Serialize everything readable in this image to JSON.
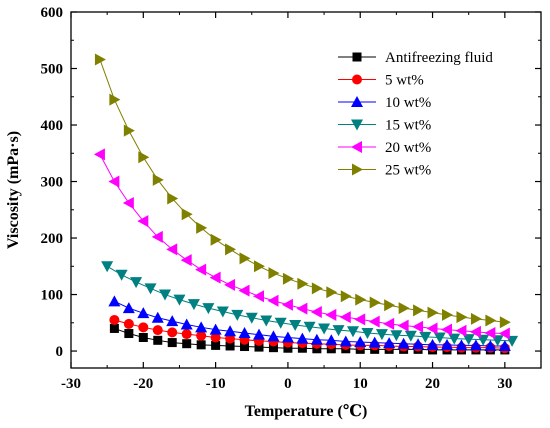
{
  "chart_data": {
    "type": "line",
    "xlabel": "Temperature (℃)",
    "ylabel": "Viscosity (mPa·s)",
    "xlim": [
      -30,
      35
    ],
    "ylim": [
      -30,
      600
    ],
    "xticks": [
      -30,
      -20,
      -10,
      0,
      10,
      20,
      30
    ],
    "yticks": [
      0,
      100,
      200,
      300,
      400,
      500,
      600
    ],
    "legend_position": "top-right",
    "grid": false,
    "x": [
      -24,
      -22,
      -20,
      -18,
      -16,
      -14,
      -12,
      -10,
      -8,
      -6,
      -4,
      -2,
      0,
      2,
      4,
      6,
      8,
      10,
      12,
      14,
      16,
      18,
      20,
      22,
      24,
      26,
      28,
      30
    ],
    "series": [
      {
        "name": "Antifreezing fluid",
        "color": "#000000",
        "marker": "square",
        "x": [
          -24,
          -22,
          -20,
          -18,
          -16,
          -14,
          -12,
          -10,
          -8,
          -6,
          -4,
          -2,
          0,
          2,
          4,
          6,
          8,
          10,
          12,
          14,
          16,
          18,
          20,
          22,
          24,
          26,
          28,
          30
        ],
        "values": [
          40,
          31,
          24,
          19,
          15,
          13,
          11,
          10,
          9,
          8,
          7,
          6,
          5,
          5,
          4,
          4,
          4,
          3,
          3,
          3,
          3,
          3,
          2,
          2,
          2,
          2,
          2,
          2
        ]
      },
      {
        "name": "5 wt%",
        "color": "#ff0000",
        "marker": "circle",
        "x": [
          -24,
          -22,
          -20,
          -18,
          -16,
          -14,
          -12,
          -10,
          -8,
          -6,
          -4,
          -2,
          0,
          2,
          4,
          6,
          8,
          10,
          12,
          14,
          16,
          18,
          20,
          22,
          24,
          26,
          28,
          30
        ],
        "values": [
          55,
          48,
          42,
          37,
          33,
          30,
          27,
          24,
          22,
          20,
          18,
          17,
          15,
          14,
          13,
          12,
          11,
          10,
          10,
          9,
          8,
          8,
          7,
          7,
          6,
          6,
          6,
          5
        ]
      },
      {
        "name": "10 wt%",
        "color": "#0000ff",
        "marker": "triangle-up",
        "x": [
          -24,
          -22,
          -20,
          -18,
          -16,
          -14,
          -12,
          -10,
          -8,
          -6,
          -4,
          -2,
          0,
          2,
          4,
          6,
          8,
          10,
          12,
          14,
          16,
          18,
          20,
          22,
          24,
          26,
          28,
          30
        ],
        "values": [
          88,
          76,
          67,
          59,
          53,
          47,
          42,
          38,
          35,
          32,
          29,
          26,
          24,
          22,
          20,
          19,
          17,
          16,
          15,
          14,
          13,
          12,
          11,
          11,
          10,
          10,
          9,
          9
        ]
      },
      {
        "name": "15 wt%",
        "color": "#008080",
        "marker": "triangle-down",
        "x": [
          -25,
          -23,
          -21,
          -19,
          -17,
          -15,
          -13,
          -11,
          -9,
          -7,
          -5,
          -3,
          -1,
          1,
          3,
          5,
          7,
          9,
          11,
          13,
          15,
          17,
          19,
          21,
          23,
          25,
          27,
          29,
          31
        ],
        "values": [
          150,
          135,
          122,
          111,
          100,
          91,
          83,
          76,
          70,
          64,
          59,
          54,
          50,
          46,
          43,
          40,
          37,
          35,
          32,
          30,
          28,
          27,
          25,
          24,
          22,
          21,
          20,
          19,
          18
        ]
      },
      {
        "name": "20 wt%",
        "color": "#ff00ff",
        "marker": "triangle-left",
        "x": [
          -26,
          -24,
          -22,
          -20,
          -18,
          -16,
          -14,
          -12,
          -10,
          -8,
          -6,
          -4,
          -2,
          0,
          2,
          4,
          6,
          8,
          10,
          12,
          14,
          16,
          18,
          20,
          22,
          24,
          26,
          28,
          30
        ],
        "values": [
          348,
          300,
          262,
          230,
          202,
          180,
          161,
          144,
          130,
          117,
          107,
          97,
          89,
          82,
          75,
          69,
          64,
          60,
          56,
          52,
          48,
          45,
          43,
          40,
          38,
          36,
          34,
          32,
          31
        ]
      },
      {
        "name": "25 wt%",
        "color": "#808000",
        "marker": "triangle-right",
        "x": [
          -26,
          -24,
          -22,
          -20,
          -18,
          -16,
          -14,
          -12,
          -10,
          -8,
          -6,
          -4,
          -2,
          0,
          2,
          4,
          6,
          8,
          10,
          12,
          14,
          16,
          18,
          20,
          22,
          24,
          26,
          28,
          30
        ],
        "values": [
          516,
          445,
          390,
          343,
          303,
          270,
          242,
          218,
          197,
          180,
          164,
          150,
          138,
          128,
          119,
          111,
          104,
          97,
          91,
          86,
          81,
          76,
          72,
          68,
          64,
          60,
          57,
          54,
          51
        ]
      }
    ]
  }
}
